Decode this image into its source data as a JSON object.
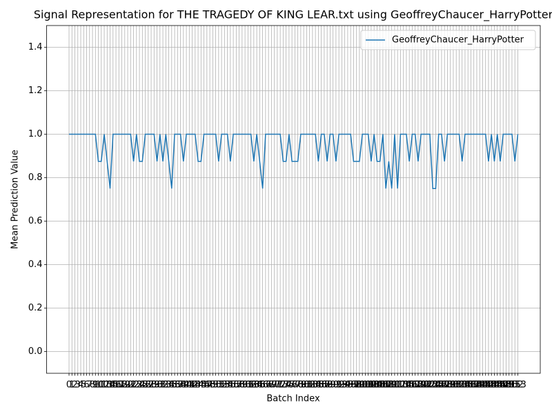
{
  "chart_data": {
    "type": "line",
    "title": "Signal Representation for THE TRAGEDY OF KING LEAR.txt using GeoffreyChaucer_HarryPotter",
    "x_label": "Batch Index",
    "y_label": "Mean Prediction Value",
    "x": [
      0,
      1,
      2,
      3,
      4,
      5,
      6,
      7,
      8,
      9,
      10,
      11,
      12,
      13,
      14,
      15,
      16,
      17,
      18,
      19,
      20,
      21,
      22,
      23,
      24,
      25,
      26,
      27,
      28,
      29,
      30,
      31,
      32,
      33,
      34,
      35,
      36,
      37,
      38,
      39,
      40,
      41,
      42,
      43,
      44,
      45,
      46,
      47,
      48,
      49,
      50,
      51,
      52,
      53,
      54,
      55,
      56,
      57,
      58,
      59,
      60,
      61,
      62,
      63,
      64,
      65,
      66,
      67,
      68,
      69,
      70,
      71,
      72,
      73,
      74,
      75,
      76,
      77,
      78,
      79,
      80,
      81,
      82,
      83,
      84,
      85,
      86,
      87,
      88,
      89,
      90,
      91,
      92,
      93,
      94,
      95,
      96,
      97,
      98,
      99,
      100,
      101,
      102,
      103,
      104,
      105,
      106,
      107,
      108,
      109,
      110,
      111,
      112,
      113,
      114,
      115,
      116,
      117,
      118,
      119,
      120,
      121,
      122,
      123,
      124,
      125,
      126,
      127,
      128,
      129,
      130,
      131,
      132,
      133,
      134,
      135,
      136,
      137,
      138,
      139,
      140,
      141,
      142,
      143,
      144,
      145,
      146,
      147,
      148,
      149,
      150,
      151,
      152,
      153
    ],
    "series": [
      {
        "name": "GeoffreyChaucer_HarryPotter",
        "color": "#1f77b4",
        "values": [
          1,
          1,
          1,
          1,
          1,
          1,
          1,
          1,
          1,
          1,
          0.875,
          0.875,
          1,
          0.875,
          0.75,
          1,
          1,
          1,
          1,
          1,
          1,
          1,
          0.875,
          1,
          0.875,
          0.875,
          1,
          1,
          1,
          1,
          0.875,
          1,
          0.875,
          1,
          0.875,
          0.75,
          1,
          1,
          1,
          0.875,
          1,
          1,
          1,
          1,
          0.875,
          0.875,
          1,
          1,
          1,
          1,
          1,
          0.875,
          1,
          1,
          1,
          0.875,
          1,
          1,
          1,
          1,
          1,
          1,
          1,
          0.875,
          1,
          0.875,
          0.75,
          1,
          1,
          1,
          1,
          1,
          1,
          0.875,
          0.875,
          1,
          0.875,
          0.875,
          0.875,
          1,
          1,
          1,
          1,
          1,
          1,
          0.875,
          1,
          1,
          0.875,
          1,
          1,
          0.875,
          1,
          1,
          1,
          1,
          1,
          0.875,
          0.875,
          0.875,
          1,
          1,
          1,
          0.875,
          1,
          0.875,
          0.875,
          1,
          0.75,
          0.875,
          0.75,
          1,
          0.75,
          1,
          1,
          1,
          0.875,
          1,
          1,
          0.875,
          1,
          1,
          1,
          1,
          0.75,
          0.75,
          1,
          1,
          0.875,
          1,
          1,
          1,
          1,
          1,
          0.875,
          1,
          1,
          1,
          1,
          1,
          1,
          1,
          1,
          0.875,
          1,
          0.875,
          1,
          0.875,
          1,
          1,
          1,
          1,
          0.875,
          1
        ]
      }
    ],
    "xlim": [
      -7.65,
      160.65
    ],
    "ylim": [
      -0.1,
      1.5
    ],
    "xticks": [
      0,
      1,
      2,
      3,
      4,
      5,
      6,
      7,
      8,
      9,
      10,
      11,
      12,
      13,
      14,
      15,
      16,
      17,
      18,
      19,
      20,
      21,
      22,
      23,
      24,
      25,
      26,
      27,
      28,
      29,
      30,
      31,
      32,
      33,
      34,
      35,
      36,
      37,
      38,
      39,
      40,
      41,
      42,
      43,
      44,
      45,
      46,
      47,
      48,
      49,
      50,
      51,
      52,
      53,
      54,
      55,
      56,
      57,
      58,
      59,
      60,
      61,
      62,
      63,
      64,
      65,
      66,
      67,
      68,
      69,
      70,
      71,
      72,
      73,
      74,
      75,
      76,
      77,
      78,
      79,
      80,
      81,
      82,
      83,
      84,
      85,
      86,
      87,
      88,
      89,
      90,
      91,
      92,
      93,
      94,
      95,
      96,
      97,
      98,
      99,
      100,
      101,
      102,
      103,
      104,
      105,
      106,
      107,
      108,
      109,
      110,
      111,
      112,
      113,
      114,
      115,
      116,
      117,
      118,
      119,
      120,
      121,
      122,
      123,
      124,
      125,
      126,
      127,
      128,
      129,
      130,
      131,
      132,
      133,
      134,
      135,
      136,
      137,
      138,
      139,
      140,
      141,
      142,
      143,
      144,
      145,
      146,
      147,
      148,
      149,
      150,
      151,
      152,
      153
    ],
    "yticks": [
      {
        "value": 0,
        "label": "0.0"
      },
      {
        "value": 0.2,
        "label": "0.2"
      },
      {
        "value": 0.4,
        "label": "0.4"
      },
      {
        "value": 0.6,
        "label": "0.6"
      },
      {
        "value": 0.8,
        "label": "0.8"
      },
      {
        "value": 1,
        "label": "1.0"
      },
      {
        "value": 1.2,
        "label": "1.2"
      },
      {
        "value": 1.4,
        "label": "1.4"
      }
    ],
    "grid": true,
    "legend": "upper right"
  }
}
